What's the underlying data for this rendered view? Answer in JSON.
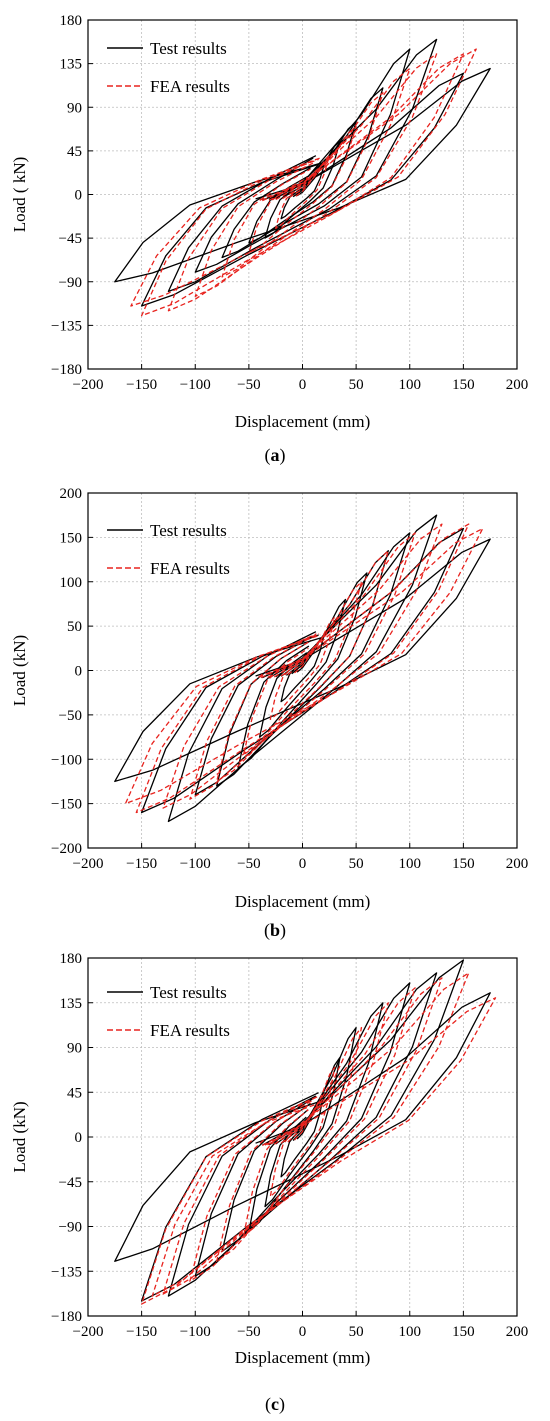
{
  "chart_data": [
    {
      "type": "line",
      "panel_label": "(a)",
      "caption_open": "(",
      "caption_letter": "a",
      "caption_close": ")",
      "xlabel": "Displacement (mm)",
      "ylabel": "Load ( kN)",
      "xlim": [
        -200,
        200
      ],
      "ylim": [
        -180,
        180
      ],
      "xticks": [
        -200,
        -150,
        -100,
        -50,
        0,
        50,
        100,
        150,
        200
      ],
      "yticks": [
        -180,
        -135,
        -90,
        -45,
        0,
        45,
        90,
        135,
        180
      ],
      "grid": true,
      "legend_position": "top-left",
      "series": [
        {
          "name": "Test results",
          "color": "#000000",
          "dash": "solid",
          "cycles": [
            {
              "dmax": 20,
              "pmax": 30,
              "dmin": -20,
              "pmin": -25
            },
            {
              "dmax": 35,
              "pmax": 55,
              "dmin": -35,
              "pmin": -45
            },
            {
              "dmax": 50,
              "pmax": 75,
              "dmin": -50,
              "pmin": -50
            },
            {
              "dmax": 75,
              "pmax": 110,
              "dmin": -75,
              "pmin": -65
            },
            {
              "dmax": 100,
              "pmax": 150,
              "dmin": -100,
              "pmin": -80
            },
            {
              "dmax": 125,
              "pmax": 160,
              "dmin": -125,
              "pmin": -100
            },
            {
              "dmax": 150,
              "pmax": 125,
              "dmin": -150,
              "pmin": -115
            },
            {
              "dmax": 175,
              "pmax": 130,
              "dmin": -175,
              "pmin": -90
            }
          ]
        },
        {
          "name": "FEA results",
          "color": "#e8231e",
          "dash": "dashed",
          "cycles": [
            {
              "dmax": 25,
              "pmax": 40,
              "dmin": -25,
              "pmin": -35
            },
            {
              "dmax": 50,
              "pmax": 70,
              "dmin": -50,
              "pmin": -60
            },
            {
              "dmax": 75,
              "pmax": 105,
              "dmin": -75,
              "pmin": -85
            },
            {
              "dmax": 100,
              "pmax": 130,
              "dmin": -100,
              "pmin": -105
            },
            {
              "dmax": 125,
              "pmax": 145,
              "dmin": -125,
              "pmin": -120
            },
            {
              "dmax": 150,
              "pmax": 145,
              "dmin": -150,
              "pmin": -125
            },
            {
              "dmax": 162,
              "pmax": 150,
              "dmin": -160,
              "pmin": -115
            }
          ]
        }
      ]
    },
    {
      "type": "line",
      "panel_label": "(b)",
      "caption_open": "(",
      "caption_letter": "b",
      "caption_close": ")",
      "xlabel": "Displacement (mm)",
      "ylabel": "Load (kN)",
      "xlim": [
        -200,
        200
      ],
      "ylim": [
        -200,
        200
      ],
      "xticks": [
        -200,
        -150,
        -100,
        -50,
        0,
        50,
        100,
        150,
        200
      ],
      "yticks": [
        -200,
        -150,
        -100,
        -50,
        0,
        50,
        100,
        150,
        200
      ],
      "grid": true,
      "legend_position": "top-left",
      "series": [
        {
          "name": "Test results",
          "color": "#000000",
          "dash": "solid",
          "cycles": [
            {
              "dmax": 20,
              "pmax": 40,
              "dmin": -20,
              "pmin": -35
            },
            {
              "dmax": 40,
              "pmax": 80,
              "dmin": -40,
              "pmin": -75
            },
            {
              "dmax": 60,
              "pmax": 110,
              "dmin": -60,
              "pmin": -110
            },
            {
              "dmax": 80,
              "pmax": 135,
              "dmin": -80,
              "pmin": -130
            },
            {
              "dmax": 100,
              "pmax": 155,
              "dmin": -100,
              "pmin": -140
            },
            {
              "dmax": 125,
              "pmax": 175,
              "dmin": -125,
              "pmin": -170
            },
            {
              "dmax": 150,
              "pmax": 160,
              "dmin": -150,
              "pmin": -160
            },
            {
              "dmax": 175,
              "pmax": 148,
              "dmin": -175,
              "pmin": -125
            }
          ]
        },
        {
          "name": "FEA results",
          "color": "#e8231e",
          "dash": "dashed",
          "cycles": [
            {
              "dmax": 30,
              "pmax": 60,
              "dmin": -30,
              "pmin": -55
            },
            {
              "dmax": 55,
              "pmax": 100,
              "dmin": -55,
              "pmin": -95
            },
            {
              "dmax": 80,
              "pmax": 135,
              "dmin": -80,
              "pmin": -125
            },
            {
              "dmax": 105,
              "pmax": 155,
              "dmin": -105,
              "pmin": -145
            },
            {
              "dmax": 130,
              "pmax": 165,
              "dmin": -130,
              "pmin": -155
            },
            {
              "dmax": 155,
              "pmax": 165,
              "dmin": -155,
              "pmin": -160
            },
            {
              "dmax": 168,
              "pmax": 160,
              "dmin": -165,
              "pmin": -150
            }
          ]
        }
      ]
    },
    {
      "type": "line",
      "panel_label": "(c)",
      "caption_open": "(",
      "caption_letter": "c",
      "caption_close": ")",
      "xlabel": "Displacement (mm)",
      "ylabel": "Load (kN)",
      "xlim": [
        -200,
        200
      ],
      "ylim": [
        -180,
        180
      ],
      "xticks": [
        -200,
        -150,
        -100,
        -50,
        0,
        50,
        100,
        150,
        200
      ],
      "yticks": [
        -180,
        -135,
        -90,
        -45,
        0,
        45,
        90,
        135,
        180
      ],
      "grid": true,
      "legend_position": "top-left",
      "series": [
        {
          "name": "Test results",
          "color": "#000000",
          "dash": "solid",
          "cycles": [
            {
              "dmax": 20,
              "pmax": 45,
              "dmin": -20,
              "pmin": -40
            },
            {
              "dmax": 35,
              "pmax": 80,
              "dmin": -35,
              "pmin": -70
            },
            {
              "dmax": 50,
              "pmax": 110,
              "dmin": -50,
              "pmin": -95
            },
            {
              "dmax": 75,
              "pmax": 135,
              "dmin": -75,
              "pmin": -115
            },
            {
              "dmax": 100,
              "pmax": 155,
              "dmin": -100,
              "pmin": -140
            },
            {
              "dmax": 125,
              "pmax": 165,
              "dmin": -125,
              "pmin": -160
            },
            {
              "dmax": 150,
              "pmax": 178,
              "dmin": -150,
              "pmin": -165
            },
            {
              "dmax": 175,
              "pmax": 145,
              "dmin": -175,
              "pmin": -125
            }
          ]
        },
        {
          "name": "FEA results",
          "color": "#e8231e",
          "dash": "dashed",
          "cycles": [
            {
              "dmax": 30,
              "pmax": 70,
              "dmin": -30,
              "pmin": -60
            },
            {
              "dmax": 55,
              "pmax": 110,
              "dmin": -55,
              "pmin": -100
            },
            {
              "dmax": 80,
              "pmax": 135,
              "dmin": -80,
              "pmin": -125
            },
            {
              "dmax": 105,
              "pmax": 150,
              "dmin": -105,
              "pmin": -145
            },
            {
              "dmax": 130,
              "pmax": 160,
              "dmin": -130,
              "pmin": -158
            },
            {
              "dmax": 155,
              "pmax": 165,
              "dmin": -150,
              "pmin": -168
            },
            {
              "dmax": 180,
              "pmax": 140,
              "dmin": -140,
              "pmin": -160
            }
          ]
        }
      ]
    }
  ]
}
